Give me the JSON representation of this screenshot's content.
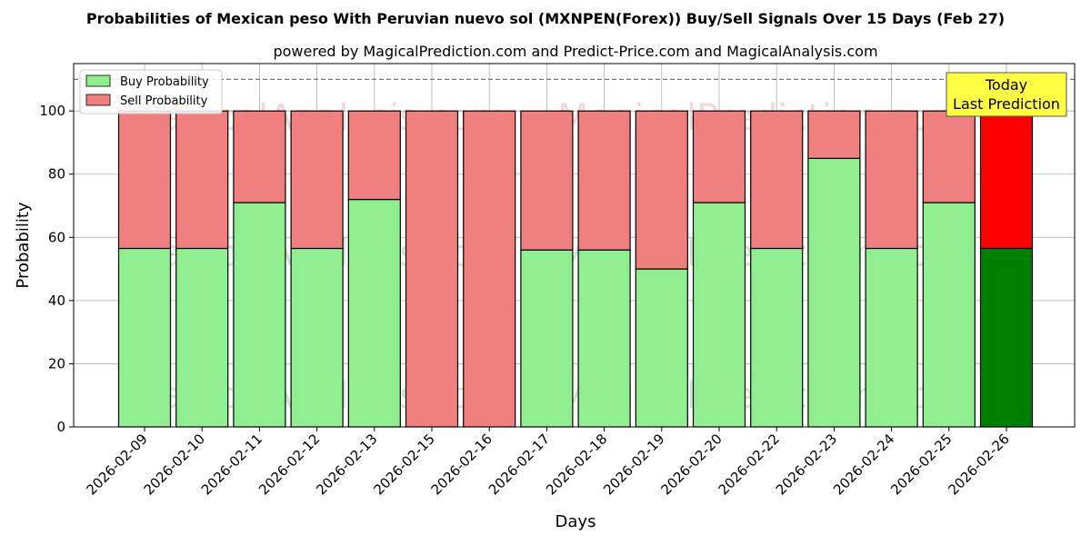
{
  "chart_data": {
    "type": "bar",
    "stacked": true,
    "title": "Probabilities of Mexican peso With Peruvian nuevo sol (MXNPEN(Forex)) Buy/Sell Signals Over 15 Days (Feb 27)",
    "subtitle": "powered by MagicalPrediction.com and Predict-Price.com and MagicalAnalysis.com",
    "xlabel": "Days",
    "ylabel": "Probability",
    "ylim": [
      0,
      115
    ],
    "yticks": [
      0,
      20,
      40,
      60,
      80,
      100
    ],
    "grid": true,
    "legend_position": "top-left",
    "reference_line": 110,
    "categories": [
      "2026-02-09",
      "2026-02-10",
      "2026-02-11",
      "2026-02-12",
      "2026-02-13",
      "2026-02-15",
      "2026-02-16",
      "2026-02-17",
      "2026-02-18",
      "2026-02-19",
      "2026-02-20",
      "2026-02-22",
      "2026-02-23",
      "2026-02-24",
      "2026-02-25",
      "2026-02-26"
    ],
    "series": [
      {
        "name": "Buy Probability",
        "color": "#90ee90",
        "highlight_color": "#008000",
        "values": [
          56.5,
          56.5,
          71,
          56.5,
          72,
          0,
          0,
          56,
          56,
          50,
          71,
          56.5,
          85,
          56.5,
          71,
          56.5
        ]
      },
      {
        "name": "Sell Probability",
        "color": "#f08080",
        "highlight_color": "#ff0000",
        "values": [
          43.5,
          43.5,
          29,
          43.5,
          28,
          100,
          100,
          44,
          44,
          50,
          29,
          43.5,
          15,
          43.5,
          29,
          43.5
        ]
      }
    ],
    "annotation": {
      "line1": "Today",
      "line2": "Last Prediction",
      "color": "#ffff44"
    },
    "watermarks": [
      "MagicalAnalysis.com",
      "MagicalPrediction.com"
    ]
  }
}
